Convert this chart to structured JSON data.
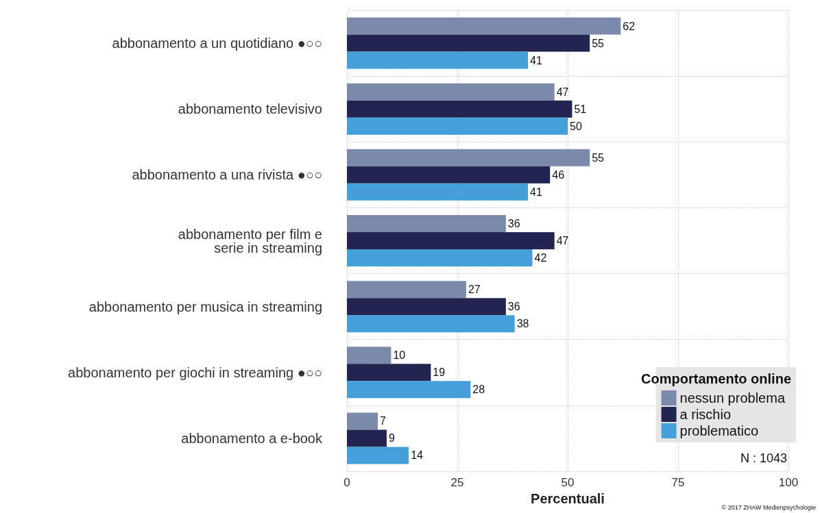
{
  "chart_data": {
    "type": "bar",
    "orientation": "horizontal",
    "xlabel": "Percentuali",
    "legend_title": "Comportamento online",
    "categories": [
      "abbonamento a un quotidiano ●○○",
      "abbonamento televisivo",
      "abbonamento a una rivista ●○○",
      "abbonamento per film e\nserie in streaming",
      "abbonamento per musica in streaming",
      "abbonamento per giochi in streaming ●○○",
      "abbonamento a e-book"
    ],
    "series": [
      {
        "name": "nessun problema",
        "color": "#7b89ab",
        "values": [
          62,
          47,
          55,
          36,
          27,
          10,
          7
        ]
      },
      {
        "name": "a rischio",
        "color": "#232551",
        "values": [
          55,
          51,
          46,
          47,
          36,
          19,
          9
        ]
      },
      {
        "name": "problematico",
        "color": "#45a0d9",
        "values": [
          41,
          50,
          41,
          42,
          38,
          28,
          14
        ]
      }
    ],
    "xlim": [
      0,
      100
    ],
    "xticks": [
      0,
      25,
      50,
      75,
      100
    ],
    "grid": true,
    "legend": "bottom right",
    "data_labels": true,
    "annotations": [
      "N : 1043",
      "© 2017 ZHAW Medienpsychologie"
    ]
  }
}
